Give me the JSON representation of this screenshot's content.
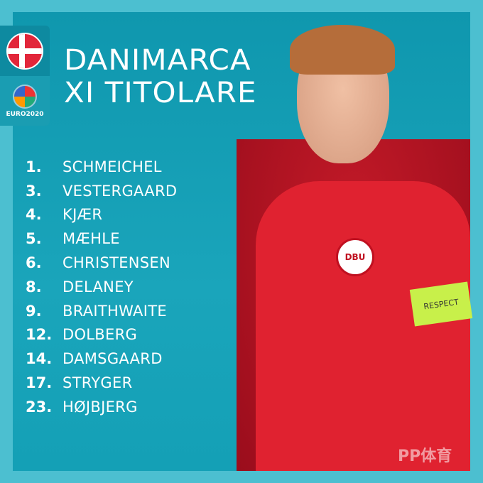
{
  "title": {
    "line1": "DANIMARCA",
    "line2": "XI TITOLARE"
  },
  "badge": {
    "flag": "denmark-flag",
    "logo_text": "EURO2020"
  },
  "players": [
    {
      "number": "1.",
      "name": "SCHMEICHEL"
    },
    {
      "number": "3.",
      "name": "VESTERGAARD"
    },
    {
      "number": "4.",
      "name": "KJÆR"
    },
    {
      "number": "5.",
      "name": "MÆHLE"
    },
    {
      "number": "6.",
      "name": "CHRISTENSEN"
    },
    {
      "number": "8.",
      "name": "DELANEY"
    },
    {
      "number": "9.",
      "name": "BRAITHWAITE"
    },
    {
      "number": "12.",
      "name": "DOLBERG"
    },
    {
      "number": "14.",
      "name": "DAMSGAARD"
    },
    {
      "number": "17.",
      "name": "STRYGER"
    },
    {
      "number": "23.",
      "name": "HØJBJERG"
    }
  ],
  "photo": {
    "crest_text": "DBU",
    "armband_text": "RESPECT"
  },
  "watermark": "PP体育",
  "colors": {
    "background": "#4cbfd0",
    "panel": "#14a0b6",
    "shirt": "#e02230"
  }
}
